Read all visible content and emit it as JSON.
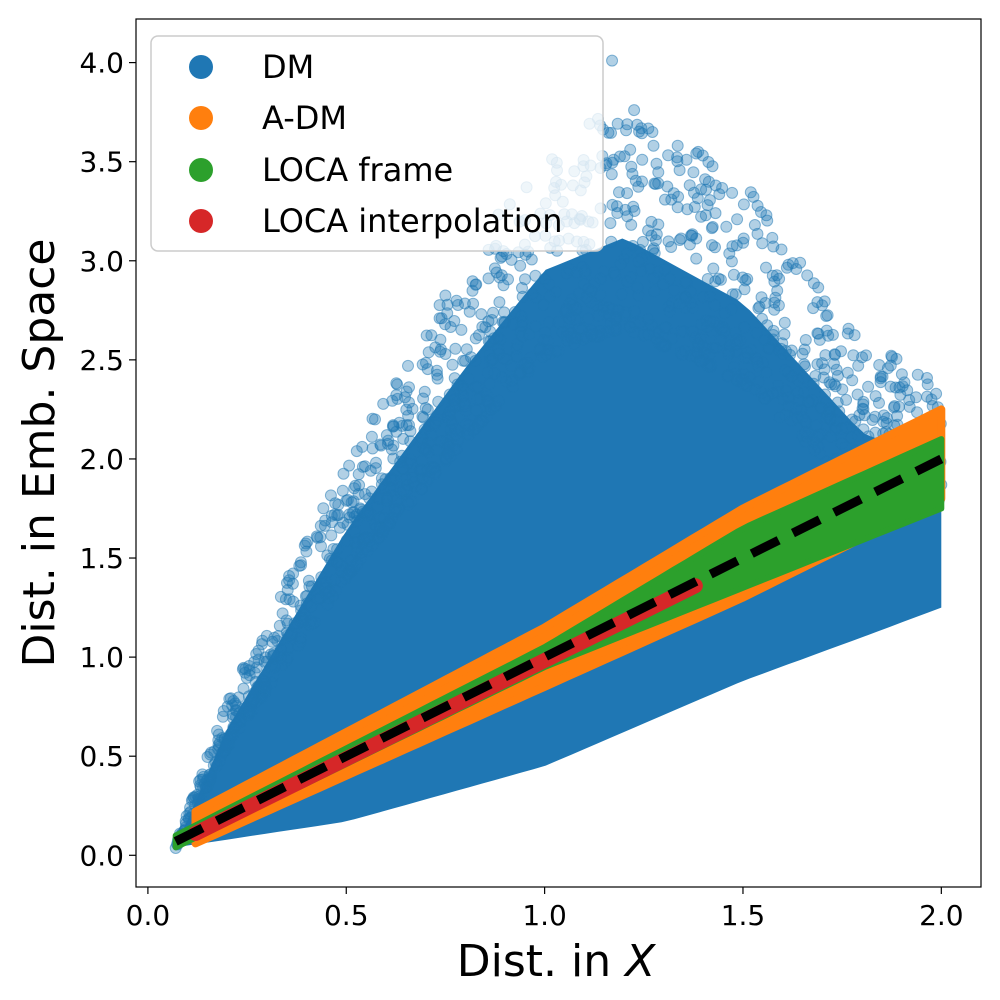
{
  "chart_data": {
    "type": "scatter",
    "xlabel": "Dist. in ",
    "xlabel_var": "X",
    "ylabel": "Dist. in Emb. Space",
    "xlim": [
      -0.03,
      2.1
    ],
    "ylim": [
      -0.16,
      4.22
    ],
    "xticks": [
      0.0,
      0.5,
      1.0,
      1.5,
      2.0
    ],
    "xtick_labels": [
      "0.0",
      "0.5",
      "1.0",
      "1.5",
      "2.0"
    ],
    "yticks": [
      0.0,
      0.5,
      1.0,
      1.5,
      2.0,
      2.5,
      3.0,
      3.5,
      4.0
    ],
    "ytick_labels": [
      "0.0",
      "0.5",
      "1.0",
      "1.5",
      "2.0",
      "2.5",
      "3.0",
      "3.5",
      "4.0"
    ],
    "legend_position": "top-left",
    "colors": {
      "dm": "#1f77b4",
      "adm": "#ff7f0e",
      "loca_frame": "#2ca02c",
      "loca_interp": "#d62728",
      "reference": "#000000"
    },
    "series": [
      {
        "name": "DM",
        "color": "#1f77b4",
        "x_range": [
          0.07,
          2.0
        ],
        "lower_envelope": [
          [
            0.07,
            0.04
          ],
          [
            0.5,
            0.17
          ],
          [
            1.0,
            0.45
          ],
          [
            1.5,
            0.88
          ],
          [
            1.8,
            1.1
          ],
          [
            2.0,
            1.25
          ]
        ],
        "upper_envelope": [
          [
            0.07,
            0.05
          ],
          [
            0.2,
            0.78
          ],
          [
            0.5,
            2.0
          ],
          [
            0.8,
            3.0
          ],
          [
            1.0,
            3.6
          ],
          [
            1.2,
            3.8
          ],
          [
            1.5,
            3.4
          ],
          [
            1.8,
            2.6
          ],
          [
            2.0,
            2.4
          ]
        ],
        "max_outlier": [
          1.17,
          4.01
        ]
      },
      {
        "name": "A-DM",
        "color": "#ff7f0e",
        "x_range": [
          0.12,
          2.0
        ],
        "lower_envelope": [
          [
            0.12,
            0.06
          ],
          [
            1.0,
            0.85
          ],
          [
            1.5,
            1.3
          ],
          [
            2.0,
            1.8
          ]
        ],
        "upper_envelope": [
          [
            0.12,
            0.22
          ],
          [
            1.0,
            1.15
          ],
          [
            1.5,
            1.75
          ],
          [
            2.0,
            2.25
          ]
        ]
      },
      {
        "name": "LOCA frame",
        "color": "#2ca02c",
        "x_range": [
          0.07,
          2.0
        ],
        "lower_envelope": [
          [
            0.07,
            0.04
          ],
          [
            1.0,
            0.95
          ],
          [
            1.5,
            1.35
          ],
          [
            2.0,
            1.75
          ]
        ],
        "upper_envelope": [
          [
            0.07,
            0.1
          ],
          [
            1.0,
            1.05
          ],
          [
            1.5,
            1.65
          ],
          [
            2.0,
            2.1
          ]
        ]
      },
      {
        "name": "LOCA interpolation",
        "color": "#d62728",
        "x_range": [
          0.12,
          1.38
        ],
        "points": [
          [
            0.12,
            0.11
          ],
          [
            1.38,
            1.36
          ]
        ]
      }
    ],
    "reference_line": {
      "style": "dashed",
      "color": "#000000",
      "points": [
        [
          0.07,
          0.07
        ],
        [
          2.0,
          2.0
        ]
      ]
    }
  }
}
